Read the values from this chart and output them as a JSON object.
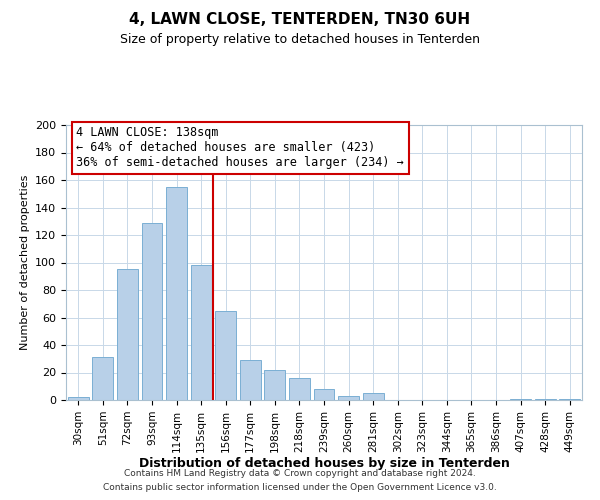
{
  "title": "4, LAWN CLOSE, TENTERDEN, TN30 6UH",
  "subtitle": "Size of property relative to detached houses in Tenterden",
  "xlabel": "Distribution of detached houses by size in Tenterden",
  "ylabel": "Number of detached properties",
  "bar_labels": [
    "30sqm",
    "51sqm",
    "72sqm",
    "93sqm",
    "114sqm",
    "135sqm",
    "156sqm",
    "177sqm",
    "198sqm",
    "218sqm",
    "239sqm",
    "260sqm",
    "281sqm",
    "302sqm",
    "323sqm",
    "344sqm",
    "365sqm",
    "386sqm",
    "407sqm",
    "428sqm",
    "449sqm"
  ],
  "bar_values": [
    2,
    31,
    95,
    129,
    155,
    98,
    65,
    29,
    22,
    16,
    8,
    3,
    5,
    0,
    0,
    0,
    0,
    0,
    1,
    1,
    1
  ],
  "bar_color": "#b8d0e8",
  "bar_edge_color": "#7aafd4",
  "vline_color": "#cc0000",
  "ylim": [
    0,
    200
  ],
  "yticks": [
    0,
    20,
    40,
    60,
    80,
    100,
    120,
    140,
    160,
    180,
    200
  ],
  "annotation_title": "4 LAWN CLOSE: 138sqm",
  "annotation_line1": "← 64% of detached houses are smaller (423)",
  "annotation_line2": "36% of semi-detached houses are larger (234) →",
  "annotation_box_color": "#ffffff",
  "annotation_box_edge": "#cc0000",
  "footer1": "Contains HM Land Registry data © Crown copyright and database right 2024.",
  "footer2": "Contains public sector information licensed under the Open Government Licence v3.0.",
  "background_color": "#ffffff",
  "grid_color": "#c8d8e8",
  "title_fontsize": 11,
  "subtitle_fontsize": 9,
  "ylabel_fontsize": 8,
  "xlabel_fontsize": 9,
  "tick_fontsize": 8,
  "xtick_fontsize": 7.5,
  "footer_fontsize": 6.5
}
